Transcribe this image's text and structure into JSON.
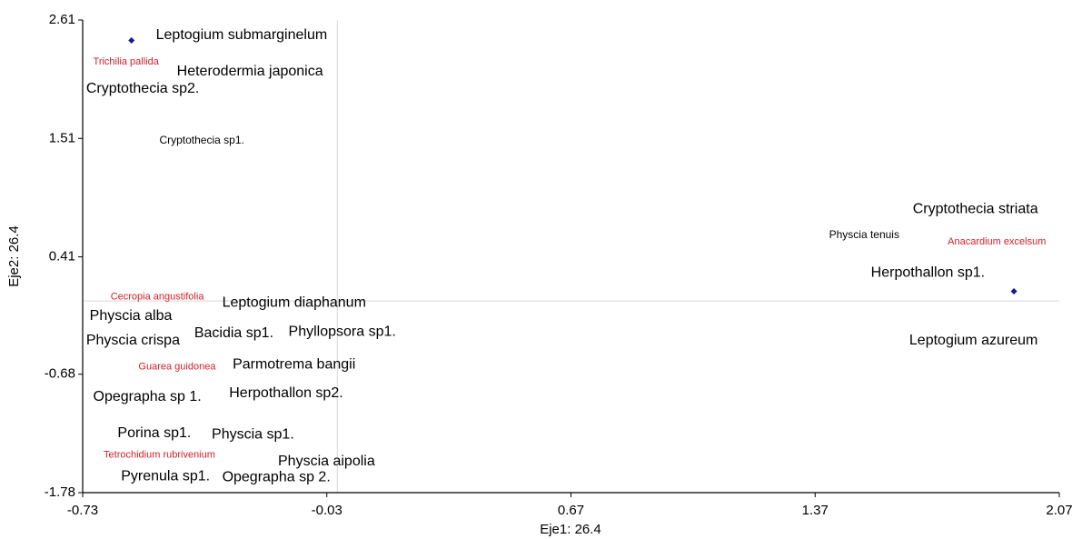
{
  "chart_data": {
    "type": "scatter",
    "xlabel": "Eje1: 26.4",
    "ylabel": "Eje2: 26.4",
    "xlim": [
      -0.73,
      2.07
    ],
    "xticks": [
      -0.73,
      -0.03,
      0.67,
      1.37,
      2.07
    ],
    "ylim": [
      -1.78,
      2.61
    ],
    "yticks": [
      2.61,
      1.51,
      0.41,
      -0.68,
      -1.78
    ],
    "x_ref": 0,
    "y_ref": 0,
    "series": [
      {
        "color": "#1a1a8c",
        "x": [
          -0.59,
          1.94
        ],
        "y": [
          2.42,
          0.09
        ]
      }
    ],
    "text_points": [
      {
        "color": "#000000",
        "texts": [
          "Leptogium submarginelum",
          "Heterodermia japonica",
          "Cryptothecia sp2.",
          "Cryptothecia striata",
          "Herpothallon sp1.",
          "Leptogium diaphanum",
          "Physcia alba",
          "Bacidia sp1.",
          "Phyllopsora sp1.",
          "Physcia crispa",
          "Leptogium azureum",
          "Parmotrema bangii",
          "Opegrapha sp 1.",
          "Herpothallon sp2.",
          "Porina sp1.",
          "Physcia sp1.",
          "Physcia aipolia",
          "Pyrenula sp1.",
          "Opegrapha sp 2."
        ],
        "x": [
          -0.52,
          -0.46,
          -0.72,
          1.65,
          1.53,
          -0.33,
          -0.71,
          -0.41,
          -0.14,
          -0.72,
          1.64,
          -0.3,
          -0.7,
          -0.31,
          -0.63,
          -0.36,
          -0.17,
          -0.62,
          -0.33
        ],
        "y": [
          2.47,
          2.13,
          1.97,
          0.85,
          0.26,
          -0.02,
          -0.14,
          -0.3,
          -0.29,
          -0.37,
          -0.37,
          -0.59,
          -0.89,
          -0.86,
          -1.23,
          -1.24,
          -1.49,
          -1.63,
          -1.64
        ]
      },
      {
        "color": "#000000",
        "texts": [
          "Cryptothecia sp1.",
          "Physcia tenuis"
        ],
        "x": [
          -0.51,
          1.41
        ],
        "y": [
          1.49,
          0.61
        ]
      },
      {
        "color": "#d0202a",
        "texts": [
          "Trichilia pallida",
          "Anacardium excelsum",
          "Cecropia angustifolia",
          "Guarea guidonea",
          "Tetrochidium rubrivenium"
        ],
        "x": [
          -0.7,
          1.75,
          -0.65,
          -0.57,
          -0.67
        ],
        "y": [
          2.22,
          0.55,
          0.04,
          -0.61,
          -1.43
        ]
      }
    ]
  }
}
